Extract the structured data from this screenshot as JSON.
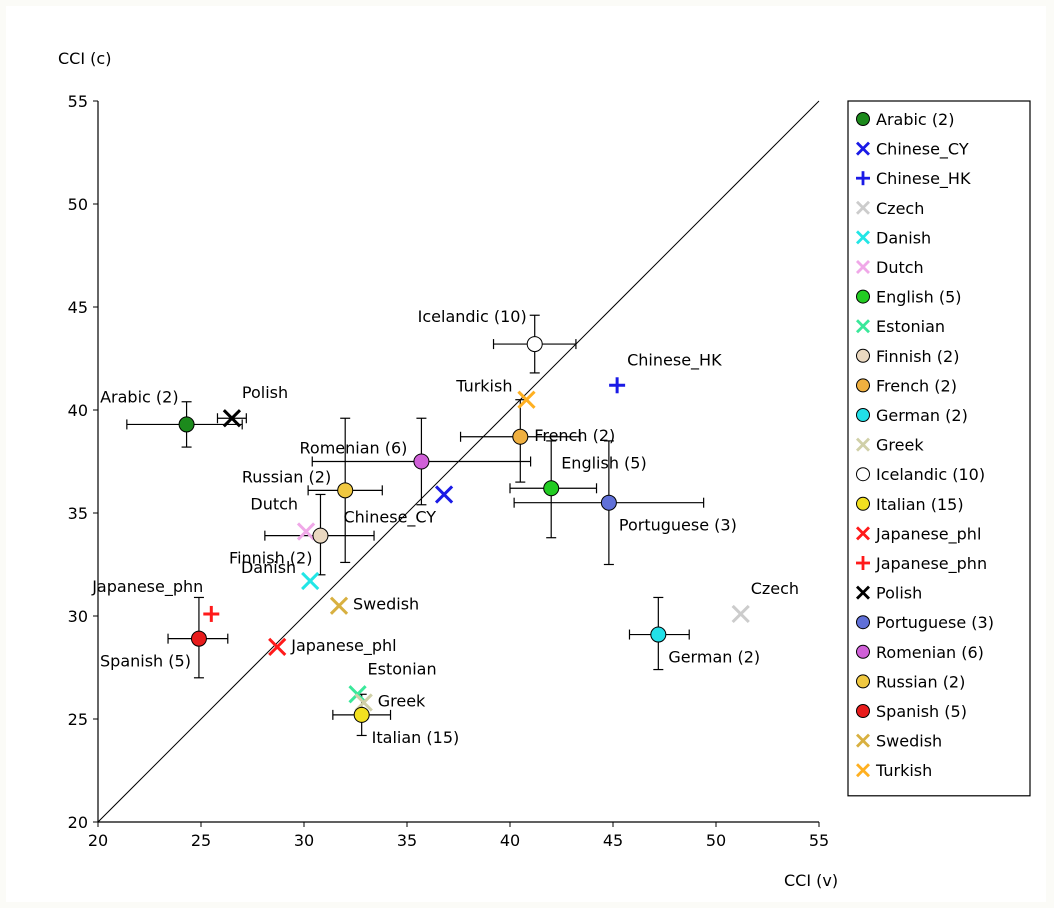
{
  "chart_data": {
    "type": "scatter",
    "title": "",
    "xlabel": "CCI (v)",
    "ylabel": "CCI (c)",
    "xlim": [
      20,
      55
    ],
    "ylim": [
      20,
      55
    ],
    "xticks": [
      "20",
      "25",
      "30",
      "35",
      "40",
      "45",
      "50",
      "55"
    ],
    "yticks": [
      "20",
      "25",
      "30",
      "35",
      "40",
      "45",
      "50",
      "55"
    ],
    "reference_line": "y = x",
    "grid": false,
    "legend_position": "right",
    "series": [
      {
        "name": "Arabic (2)",
        "label": "Arabic (2)",
        "marker": "circle",
        "color": "#1c8a1c",
        "x": 24.3,
        "y": 39.3,
        "xerr": [
          21.4,
          27.0
        ],
        "yerr": [
          38.2,
          40.4
        ],
        "label_pos": "above-left"
      },
      {
        "name": "Chinese_CY",
        "label": "Chinese_CY",
        "marker": "x",
        "color": "#1a1ae6",
        "x": 36.8,
        "y": 35.9,
        "label_pos": "below-left"
      },
      {
        "name": "Chinese_HK",
        "label": "Chinese_HK",
        "marker": "plus",
        "color": "#1a1ae6",
        "x": 45.2,
        "y": 41.2,
        "label_pos": "above-right"
      },
      {
        "name": "Czech",
        "label": "Czech",
        "marker": "x",
        "color": "#cccccc",
        "x": 51.2,
        "y": 30.1,
        "label_pos": "above-right"
      },
      {
        "name": "Danish",
        "label": "Danish",
        "marker": "x",
        "color": "#22e6e6",
        "x": 30.3,
        "y": 31.7,
        "label_pos": "left"
      },
      {
        "name": "Dutch",
        "label": "Dutch",
        "marker": "x",
        "color": "#f0a8e8",
        "x": 30.1,
        "y": 34.1,
        "label_pos": "above-left"
      },
      {
        "name": "English (5)",
        "label": "English (5)",
        "marker": "circle",
        "color": "#22cc22",
        "x": 42.0,
        "y": 36.2,
        "xerr": [
          40.0,
          44.2
        ],
        "yerr": [
          33.8,
          38.5
        ],
        "label_pos": "above-right"
      },
      {
        "name": "Estonian",
        "label": "Estonian",
        "marker": "x",
        "color": "#3ae89a",
        "x": 32.6,
        "y": 26.2,
        "label_pos": "above-right"
      },
      {
        "name": "Finnish (2)",
        "label": "Finnish (2)",
        "marker": "circle",
        "color": "#ead8c0",
        "x": 30.8,
        "y": 33.9,
        "xerr": [
          28.1,
          33.4
        ],
        "yerr": [
          32.0,
          35.9
        ],
        "label_pos": "below-left"
      },
      {
        "name": "French (2)",
        "label": "French (2)",
        "marker": "circle",
        "color": "#f0b040",
        "x": 40.5,
        "y": 38.7,
        "xerr": [
          37.6,
          43.4
        ],
        "yerr": [
          36.5,
          40.5
        ],
        "label_pos": "right"
      },
      {
        "name": "German (2)",
        "label": "German (2)",
        "marker": "circle",
        "color": "#22e0e8",
        "x": 47.2,
        "y": 29.1,
        "xerr": [
          45.8,
          48.7
        ],
        "yerr": [
          27.4,
          30.9
        ],
        "label_pos": "below-right"
      },
      {
        "name": "Greek",
        "label": "Greek",
        "marker": "x",
        "color": "#d0d0a8",
        "x": 32.9,
        "y": 25.8,
        "label_pos": "right"
      },
      {
        "name": "Icelandic (10)",
        "label": "Icelandic (10)",
        "marker": "circle",
        "color": "#ffffff",
        "x": 41.2,
        "y": 43.2,
        "xerr": [
          39.2,
          43.2
        ],
        "yerr": [
          41.8,
          44.6
        ],
        "label_pos": "above-left"
      },
      {
        "name": "Italian (15)",
        "label": "Italian (15)",
        "marker": "circle",
        "color": "#f2e020",
        "x": 32.8,
        "y": 25.2,
        "xerr": [
          31.4,
          34.2
        ],
        "yerr": [
          24.2,
          26.2
        ],
        "label_pos": "below-right"
      },
      {
        "name": "Japanese_phl",
        "label": "Japanese_phl",
        "marker": "x",
        "color": "#ff1a1a",
        "x": 28.7,
        "y": 28.5,
        "label_pos": "right"
      },
      {
        "name": "Japanese_phn",
        "label": "Japanese_phn",
        "marker": "plus",
        "color": "#ff1a1a",
        "x": 25.5,
        "y": 30.1,
        "label_pos": "above-left"
      },
      {
        "name": "Polish",
        "label": "Polish",
        "marker": "x",
        "color": "#000000",
        "x": 26.5,
        "y": 39.6,
        "xerr": [
          25.8,
          27.2
        ],
        "label_pos": "above-right"
      },
      {
        "name": "Portuguese (3)",
        "label": "Portuguese (3)",
        "marker": "circle",
        "color": "#6070d8",
        "x": 44.8,
        "y": 35.5,
        "xerr": [
          40.2,
          49.4
        ],
        "yerr": [
          32.5,
          38.5
        ],
        "label_pos": "below-right"
      },
      {
        "name": "Romenian (6)",
        "label": "Romenian (6)",
        "marker": "circle",
        "color": "#d060d8",
        "x": 35.7,
        "y": 37.5,
        "xerr": [
          30.4,
          41.0
        ],
        "yerr": [
          35.4,
          39.6
        ],
        "label_pos": "left"
      },
      {
        "name": "Russian (2)",
        "label": "Russian (2)",
        "marker": "circle",
        "color": "#f0c840",
        "x": 32.0,
        "y": 36.1,
        "xerr": [
          30.2,
          33.8
        ],
        "yerr": [
          32.6,
          39.6
        ],
        "label_pos": "left"
      },
      {
        "name": "Spanish (5)",
        "label": "Spanish (5)",
        "marker": "circle",
        "color": "#e81c1c",
        "x": 24.9,
        "y": 28.9,
        "xerr": [
          23.4,
          26.3
        ],
        "yerr": [
          27.0,
          30.9
        ],
        "label_pos": "below-left"
      },
      {
        "name": "Swedish",
        "label": "Swedish",
        "marker": "x",
        "color": "#d8b040",
        "x": 31.7,
        "y": 30.5,
        "label_pos": "right"
      },
      {
        "name": "Turkish",
        "label": "Turkish",
        "marker": "x",
        "color": "#ffb020",
        "x": 40.8,
        "y": 40.5,
        "label_pos": "left"
      }
    ]
  }
}
